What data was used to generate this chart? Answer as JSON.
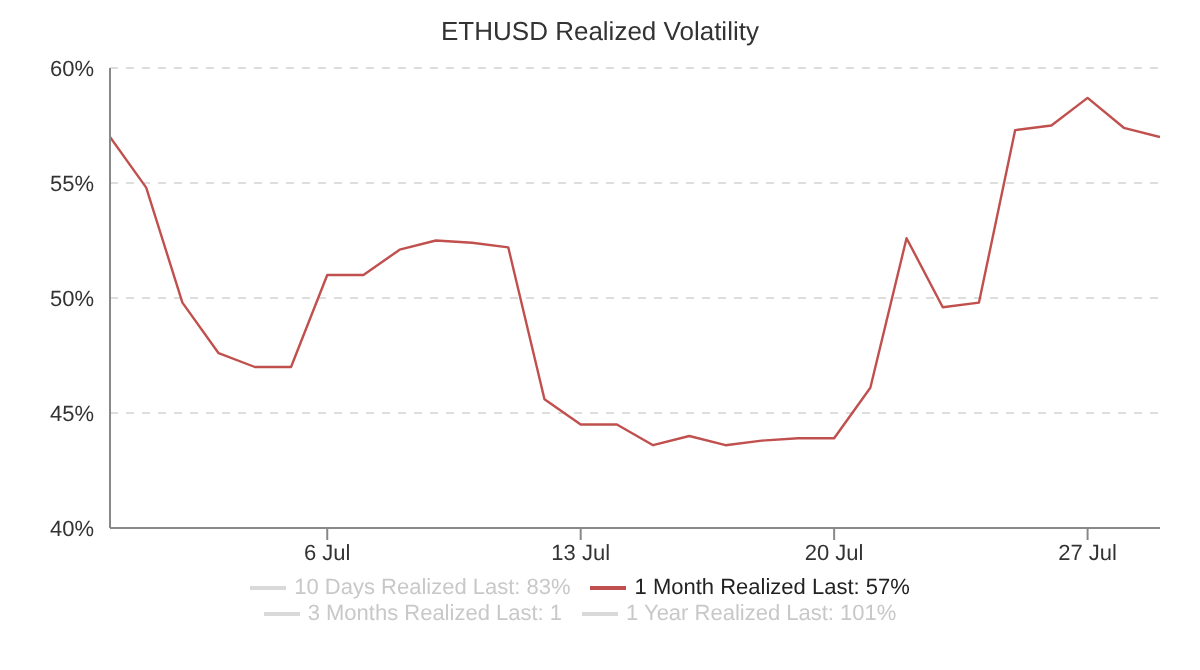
{
  "chart_data": {
    "type": "line",
    "title": "ETHUSD Realized Volatility",
    "x": [
      "--06-30",
      "--07-01",
      "--07-02",
      "--07-03",
      "--07-04",
      "--07-05",
      "--07-06",
      "--07-07",
      "--07-08",
      "--07-09",
      "--07-10",
      "--07-11",
      "--07-12",
      "--07-13",
      "--07-14",
      "--07-15",
      "--07-16",
      "--07-17",
      "--07-18",
      "--07-19",
      "--07-20",
      "--07-21",
      "--07-22",
      "--07-23",
      "--07-24",
      "--07-25",
      "--07-26",
      "--07-27",
      "--07-28",
      "--07-29"
    ],
    "series": [
      {
        "name": "10 Days Realized Last: 83%",
        "color": "#d9d9d9",
        "values": [
          null,
          null,
          null,
          null,
          null,
          null,
          null,
          null,
          null,
          null,
          null,
          null,
          null,
          null,
          null,
          null,
          null,
          null,
          null,
          null,
          null,
          null,
          null,
          null,
          null,
          null,
          null,
          null,
          null,
          null
        ]
      },
      {
        "name": "1 Month Realized Last: 57%",
        "color": "#c0504d",
        "values": [
          57.0,
          54.8,
          49.8,
          47.6,
          47.0,
          47.0,
          51.0,
          51.0,
          52.1,
          52.5,
          52.4,
          52.2,
          45.6,
          44.5,
          44.5,
          43.6,
          44.0,
          43.6,
          43.8,
          43.9,
          43.9,
          46.1,
          52.6,
          49.6,
          49.8,
          57.3,
          57.5,
          58.7,
          57.4,
          57.0
        ]
      },
      {
        "name": "3 Months Realized Last: 1",
        "color": "#d9d9d9",
        "values": [
          null,
          null,
          null,
          null,
          null,
          null,
          null,
          null,
          null,
          null,
          null,
          null,
          null,
          null,
          null,
          null,
          null,
          null,
          null,
          null,
          null,
          null,
          null,
          null,
          null,
          null,
          null,
          null,
          null,
          null
        ]
      },
      {
        "name": "1 Year Realized Last: 101%",
        "color": "#d9d9d9",
        "values": [
          null,
          null,
          null,
          null,
          null,
          null,
          null,
          null,
          null,
          null,
          null,
          null,
          null,
          null,
          null,
          null,
          null,
          null,
          null,
          null,
          null,
          null,
          null,
          null,
          null,
          null,
          null,
          null,
          null,
          null
        ]
      }
    ],
    "xlim": [
      "--06-30",
      "--07-29"
    ],
    "xticks": [
      {
        "value": "--07-06",
        "label": "6 Jul"
      },
      {
        "value": "--07-13",
        "label": "13 Jul"
      },
      {
        "value": "--07-20",
        "label": "20 Jul"
      },
      {
        "value": "--07-27",
        "label": "27 Jul"
      }
    ],
    "ylim": [
      40,
      60
    ],
    "yticks": [
      {
        "value": 40,
        "label": "40%"
      },
      {
        "value": 45,
        "label": "45%"
      },
      {
        "value": 50,
        "label": "50%"
      },
      {
        "value": 55,
        "label": "55%"
      },
      {
        "value": 60,
        "label": "60%"
      }
    ],
    "grid": "y",
    "legend": "bottom",
    "marker": "none",
    "line_style": "solid"
  }
}
